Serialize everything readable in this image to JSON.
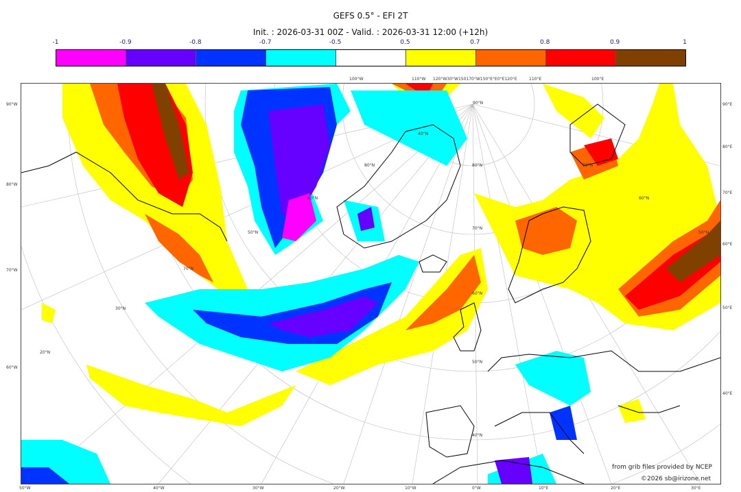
{
  "title": "GEFS 0.5° - EFI 2T",
  "subtitle": "Init. : 2026-03-31 00Z - Valid. : 2026-03-31 12:00 (+12h)",
  "colorbar": {
    "ticks": [
      "-1",
      "-0.9",
      "-0.8",
      "-0.7",
      "-0.5",
      "0.5",
      "0.7",
      "0.8",
      "0.9",
      "1"
    ],
    "colors": [
      "#ff00ff",
      "#6600ff",
      "#0033ff",
      "#00ffff",
      "#ffffff",
      "#ffff00",
      "#ff6600",
      "#ff0000",
      "#804000"
    ]
  },
  "top_labels": [
    "100°W",
    "110°W",
    "120°W30°W150170°W150°E°E0°E120°E",
    "110°E",
    "100°E"
  ],
  "bottom_labels": [
    "50°W",
    "40°W",
    "30°W",
    "20°W",
    "10°W",
    "0°W",
    "10°E",
    "20°E",
    "30°E"
  ],
  "left_labels": [
    "90°W",
    "80°W",
    "70°W",
    "60°W"
  ],
  "right_labels": [
    "90°E",
    "80°E",
    "70°E",
    "60°E",
    "50°E",
    "40°E"
  ],
  "lat_labels": [
    "90°N",
    "80°N",
    "70°N",
    "60°N",
    "50°N",
    "40°N",
    "30°N",
    "20°N",
    "80°N",
    "70°N",
    "60°N",
    "50°N",
    "60°N",
    "70°N",
    "50°N",
    "40°N"
  ],
  "credits": {
    "source": "from grib files provided by NCEP",
    "copyright": "©2026 sb@irizone.net"
  }
}
